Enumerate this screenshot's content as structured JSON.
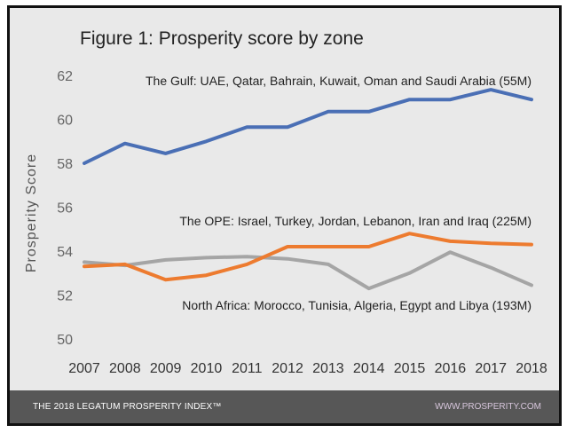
{
  "chart_data": {
    "type": "line",
    "title": "Figure 1: Prosperity score by zone",
    "xlabel": "",
    "ylabel": "Prosperity Score",
    "ylim": [
      50,
      62
    ],
    "yticks": [
      "50",
      "52",
      "54",
      "56",
      "58",
      "60",
      "62"
    ],
    "categories": [
      "2007",
      "2008",
      "2009",
      "2010",
      "2011",
      "2012",
      "2013",
      "2014",
      "2015",
      "2016",
      "2017",
      "2018"
    ],
    "grid": false,
    "series": [
      {
        "name": "The Gulf: UAE, Qatar, Bahrain, Kuwait, Oman and Saudi Arabia (55M)",
        "color": "#4a6fb5",
        "values": [
          58.0,
          58.9,
          58.45,
          59.0,
          59.65,
          59.65,
          60.35,
          60.35,
          60.9,
          60.9,
          61.35,
          60.9
        ]
      },
      {
        "name": "The OPE: Israel, Turkey, Jordan, Lebanon, Iran and Iraq (225M)",
        "color": "#ed7b2f",
        "values": [
          53.3,
          53.4,
          52.7,
          52.9,
          53.4,
          54.2,
          54.2,
          54.2,
          54.8,
          54.45,
          54.35,
          54.3
        ]
      },
      {
        "name": "North Africa: Morocco, Tunisia, Algeria, Egypt and Libya (193M)",
        "color": "#a5a5a5",
        "values": [
          53.5,
          53.35,
          53.6,
          53.7,
          53.75,
          53.65,
          53.4,
          52.3,
          53.0,
          53.95,
          53.25,
          52.45
        ]
      }
    ]
  },
  "footer": {
    "left": "THE 2018 LEGATUM PROSPERITY INDEX™",
    "right": "WWW.PROSPERITY.COM"
  }
}
